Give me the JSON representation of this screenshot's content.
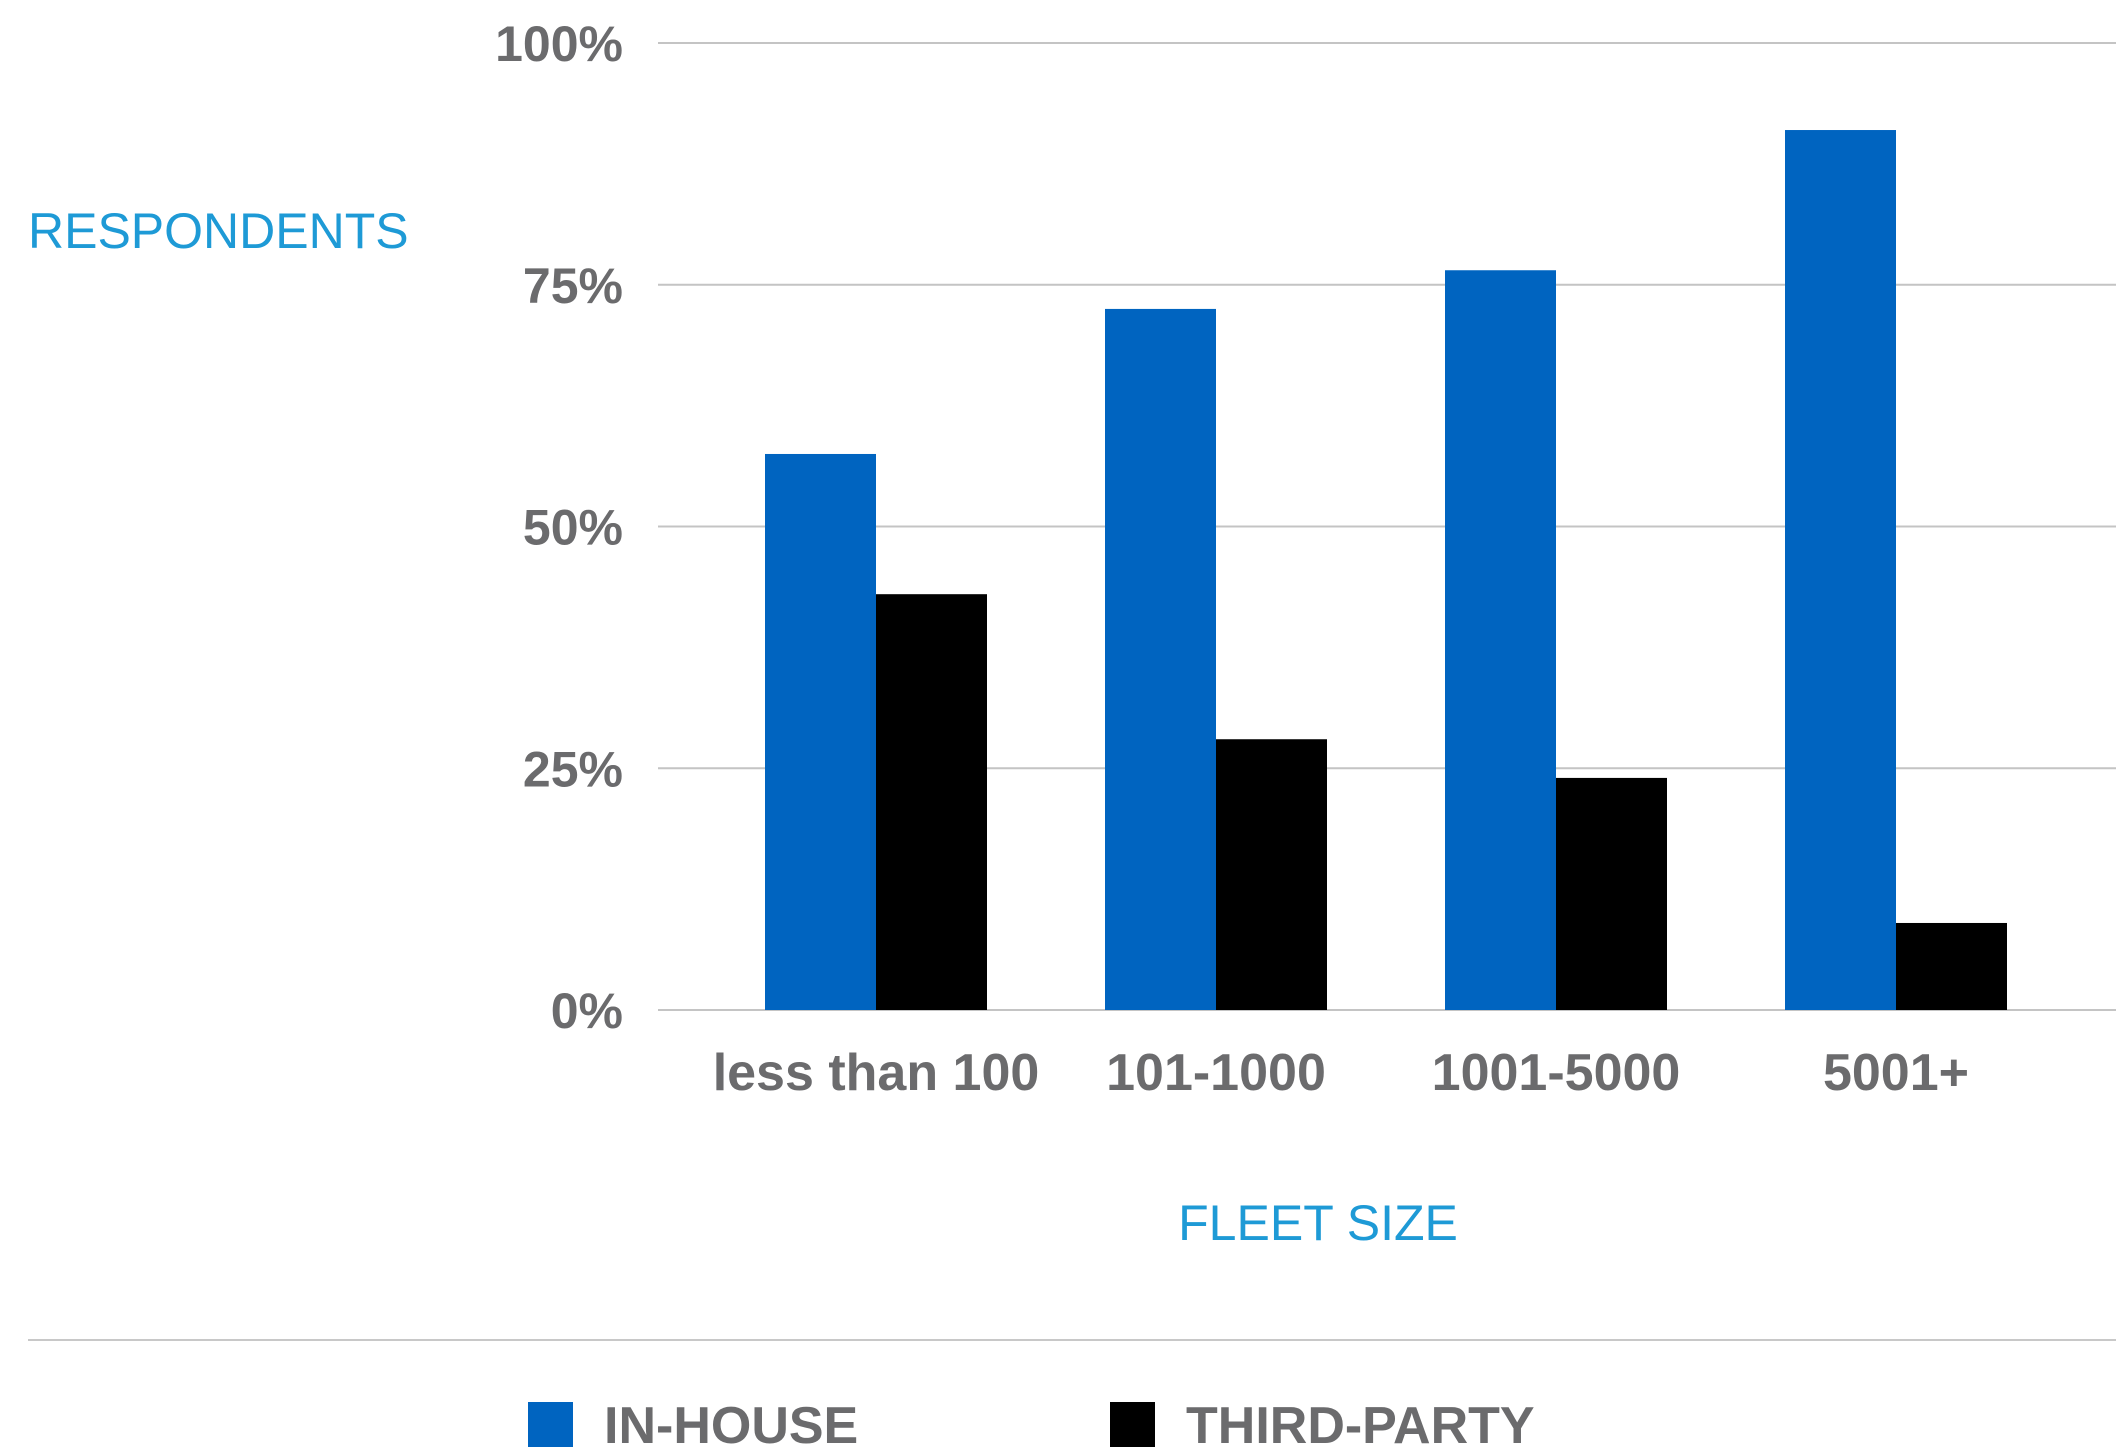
{
  "chart_data": {
    "type": "bar",
    "categories": [
      "less than 100",
      "101-1000",
      "1001-5000",
      "5001+"
    ],
    "series": [
      {
        "name": "IN-HOUSE",
        "values": [
          57.5,
          72.5,
          76.5,
          91
        ],
        "color": "#0064c0"
      },
      {
        "name": "THIRD-PARTY",
        "values": [
          43,
          28,
          24,
          9
        ],
        "color": "#000000"
      }
    ],
    "ylabel": "RESPONDENTS",
    "xlabel": "FLEET SIZE",
    "ylim": [
      0,
      100
    ],
    "yticks": [
      {
        "value": 0,
        "label": "0%"
      },
      {
        "value": 25,
        "label": "25%"
      },
      {
        "value": 50,
        "label": "50%"
      },
      {
        "value": 75,
        "label": "75%"
      },
      {
        "value": 100,
        "label": "100%"
      }
    ],
    "grid": true,
    "legend_position": "bottom"
  }
}
